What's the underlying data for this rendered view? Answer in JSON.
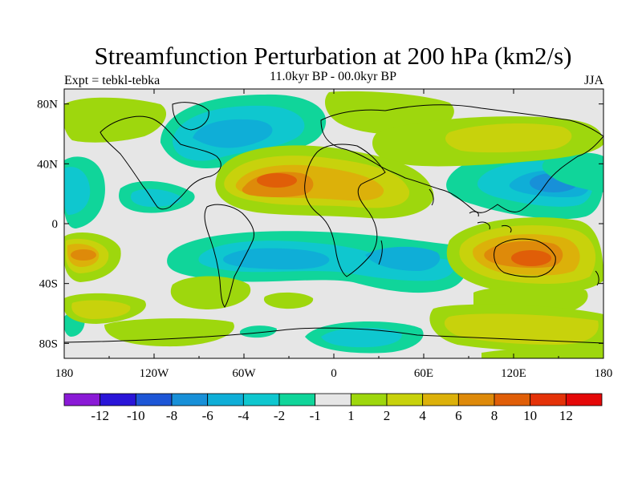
{
  "figure": {
    "title": "Streamfunction Perturbation at 200 hPa (km2/s)",
    "left_string": "Expt = tebkl-tebka",
    "center_string": "11.0kyr BP - 00.0kyr BP",
    "right_string": "JJA"
  },
  "map": {
    "projection": "cylindrical-equidistant",
    "lon_range": [
      -180,
      180
    ],
    "lat_range": [
      -90,
      90
    ],
    "lon_ticks": [
      "180",
      "120W",
      "60W",
      "0",
      "60E",
      "120E",
      "180"
    ],
    "lat_ticks": [
      "80N",
      "40N",
      "0",
      "40S",
      "80S"
    ],
    "lat_tick_values": [
      80,
      40,
      0,
      -40,
      -80
    ],
    "lon_tick_values": [
      -180,
      -120,
      -60,
      0,
      60,
      120,
      180
    ]
  },
  "colorbar": {
    "labels": [
      "-12",
      "-10",
      "-8",
      "-6",
      "-4",
      "-2",
      "-1",
      "1",
      "2",
      "4",
      "6",
      "8",
      "10",
      "12"
    ],
    "colors": [
      "#8a1ad6",
      "#2a15d8",
      "#1d56d6",
      "#1890d8",
      "#0faed7",
      "#0fc7cf",
      "#10d59a",
      "#e6e6e6",
      "#9ed70d",
      "#c8d20c",
      "#dcb10a",
      "#de8a0a",
      "#e05e08",
      "#e43208",
      "#e40808"
    ]
  },
  "chart_data": {
    "type": "heatmap",
    "title": "Streamfunction Perturbation at 200 hPa (km2/s)",
    "variable": "streamfunction perturbation",
    "level": "200 hPa",
    "units": "km2/s",
    "season": "JJA",
    "period": "11.0kyr BP - 00.0kyr BP",
    "experiment": "tebkl-tebka",
    "contour_levels": [
      -12,
      -10,
      -8,
      -6,
      -4,
      -2,
      -1,
      1,
      2,
      4,
      6,
      8,
      10,
      12
    ],
    "features": [
      {
        "name": "north-atlantic-africa-high",
        "lon": -30,
        "lat": 28,
        "value": 8
      },
      {
        "name": "australia-high",
        "lon": 135,
        "lat": -22,
        "value": 10
      },
      {
        "name": "east-pacific-south-high",
        "lon": -155,
        "lat": -22,
        "value": 6
      },
      {
        "name": "nw-pacific-low",
        "lon": 155,
        "lat": 30,
        "value": -8
      },
      {
        "name": "south-atlantic-low",
        "lon": -20,
        "lat": -25,
        "value": -6
      },
      {
        "name": "indian-ocean-low",
        "lon": 50,
        "lat": -25,
        "value": -6
      },
      {
        "name": "north-america-low",
        "lon": -100,
        "lat": 60,
        "value": -4
      },
      {
        "name": "east-asia-north-high",
        "lon": 100,
        "lat": 60,
        "value": 4
      },
      {
        "name": "south-pacific-high",
        "lon": -95,
        "lat": -45,
        "value": 3
      },
      {
        "name": "far-south-low",
        "lon": 0,
        "lat": -75,
        "value": -4
      }
    ]
  }
}
